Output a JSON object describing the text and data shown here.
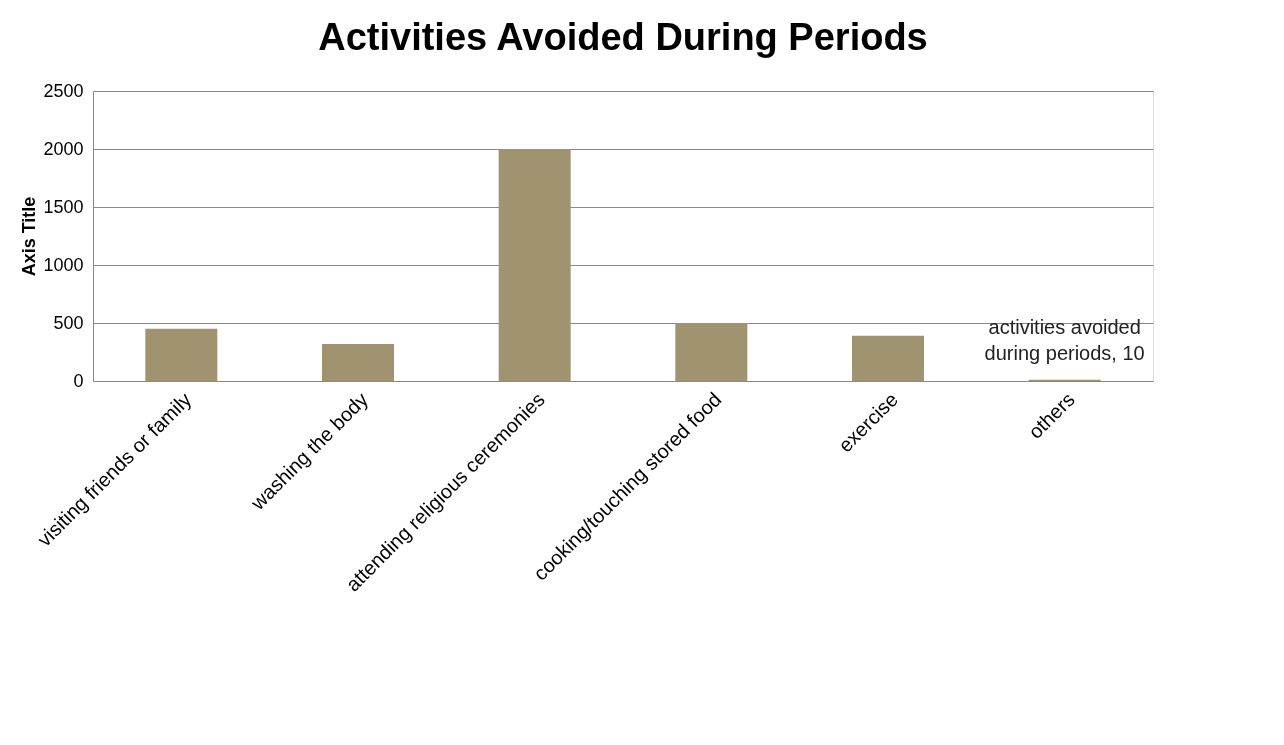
{
  "chart_data": {
    "type": "bar",
    "title": "Activities Avoided During Periods",
    "ylabel": "Axis Title",
    "categories": [
      "visiting friends or family",
      "washing the body",
      "attending religious ceremonies",
      "cooking/touching stored food",
      "exercise",
      "others"
    ],
    "values": [
      450,
      320,
      2000,
      500,
      390,
      10
    ],
    "value_labels": [
      null,
      null,
      null,
      null,
      null,
      "activities avoided during periods, 10"
    ],
    "color": "#a09370",
    "ylim": [
      0,
      2500
    ],
    "yticks": [
      0,
      500,
      1000,
      1500,
      2000,
      2500
    ],
    "grid": "y"
  }
}
